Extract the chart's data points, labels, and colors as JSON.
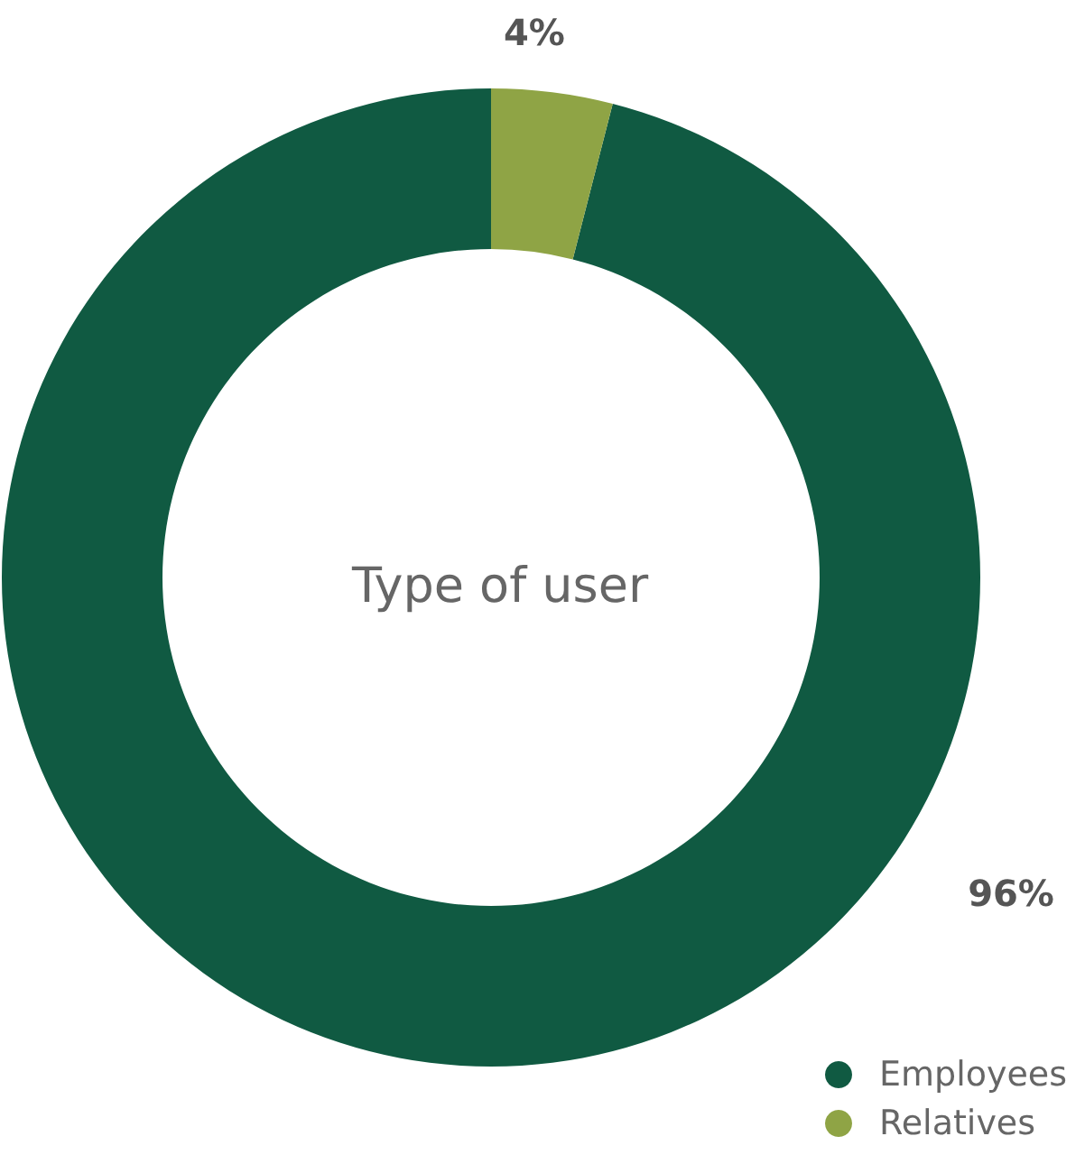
{
  "chart_data": {
    "type": "donut",
    "title": "Type of user",
    "categories": [
      "Employees",
      "Relatives"
    ],
    "values": [
      96,
      4
    ],
    "value_labels": [
      "96%",
      "4%"
    ],
    "colors": [
      "#105a42",
      "#8fa445"
    ],
    "legend": "bottom right"
  }
}
